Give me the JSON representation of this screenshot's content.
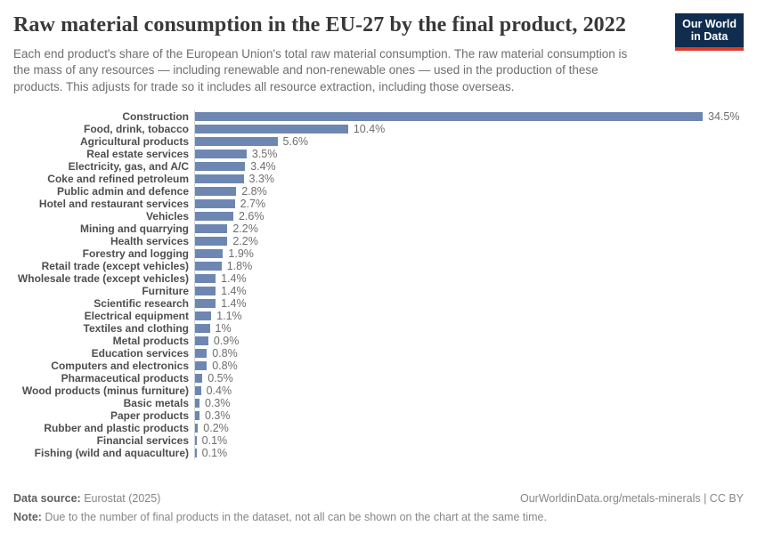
{
  "header": {
    "title": "Raw material consumption in the EU-27 by the final product, 2022",
    "subtitle": "Each end product's share of the European Union's total raw material consumption. The raw material consumption is the mass of any resources — including renewable and non-renewable ones — used in the production of these products. This adjusts for trade so it includes all resource extraction, including those overseas.",
    "logo": {
      "line1": "Our World",
      "line2": "in Data"
    }
  },
  "chart_data": {
    "type": "bar",
    "orientation": "horizontal",
    "title": "Raw material consumption in the EU-27 by the final product, 2022",
    "unit": "%",
    "xlim": [
      0,
      34.5
    ],
    "grid": false,
    "legend": "none",
    "bar_color": "#6d87b2",
    "categories": [
      "Construction",
      "Food, drink, tobacco",
      "Agricultural products",
      "Real estate services",
      "Electricity, gas, and A/C",
      "Coke and refined petroleum",
      "Public admin and defence",
      "Hotel and restaurant services",
      "Vehicles",
      "Mining and quarrying",
      "Health services",
      "Forestry and logging",
      "Retail trade (except vehicles)",
      "Wholesale trade (except vehicles)",
      "Furniture",
      "Scientific research",
      "Electrical equipment",
      "Textiles and clothing",
      "Metal products",
      "Education services",
      "Computers and electronics",
      "Pharmaceutical products",
      "Wood products (minus furniture)",
      "Basic metals",
      "Paper products",
      "Rubber and plastic products",
      "Financial services",
      "Fishing (wild and aquaculture)"
    ],
    "values": [
      34.5,
      10.4,
      5.6,
      3.5,
      3.4,
      3.3,
      2.8,
      2.7,
      2.6,
      2.2,
      2.2,
      1.9,
      1.8,
      1.4,
      1.4,
      1.4,
      1.1,
      1,
      0.9,
      0.8,
      0.8,
      0.5,
      0.4,
      0.3,
      0.3,
      0.2,
      0.1,
      0.1
    ],
    "value_labels": [
      "34.5%",
      "10.4%",
      "5.6%",
      "3.5%",
      "3.4%",
      "3.3%",
      "2.8%",
      "2.7%",
      "2.6%",
      "2.2%",
      "2.2%",
      "1.9%",
      "1.8%",
      "1.4%",
      "1.4%",
      "1.4%",
      "1.1%",
      "1%",
      "0.9%",
      "0.8%",
      "0.8%",
      "0.5%",
      "0.4%",
      "0.3%",
      "0.3%",
      "0.2%",
      "0.1%",
      "0.1%"
    ]
  },
  "footer": {
    "data_source_label": "Data source:",
    "data_source_value": " Eurostat (2025)",
    "link": "OurWorldinData.org/metals-minerals | CC BY",
    "note_label": "Note:",
    "note_value": " Due to the number of final products in the dataset, not all can be shown on the chart at the same time."
  }
}
